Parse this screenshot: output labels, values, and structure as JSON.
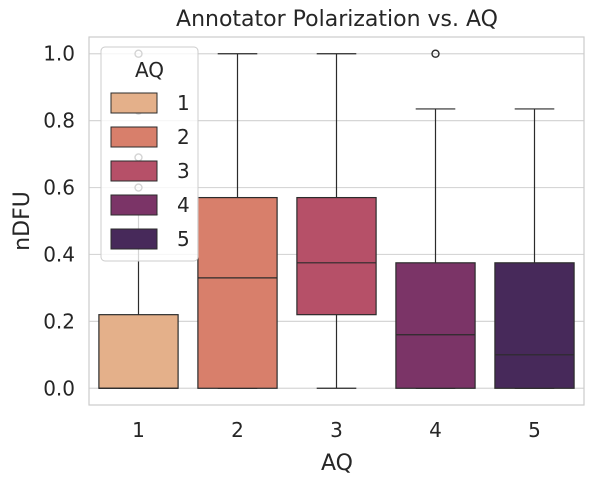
{
  "chart_data": {
    "type": "box",
    "title": "Annotator Polarization vs. AQ",
    "xlabel": "AQ",
    "ylabel": "nDFU",
    "ylim": [
      -0.05,
      1.05
    ],
    "yticks": [
      "0.0",
      "0.2",
      "0.4",
      "0.6",
      "0.8",
      "1.0"
    ],
    "ytick_values": [
      0.0,
      0.2,
      0.4,
      0.6,
      0.8,
      1.0
    ],
    "categories": [
      "1",
      "2",
      "3",
      "4",
      "5"
    ],
    "grid": true,
    "legend": {
      "title": "AQ",
      "placement": "upper-left",
      "labels": [
        "1",
        "2",
        "3",
        "4",
        "5"
      ]
    },
    "colors": [
      "#e4b08a",
      "#d87f6b",
      "#b65068",
      "#7b3467",
      "#47295a"
    ],
    "boxes": [
      {
        "category": "1",
        "q1": 0.0,
        "median": 0.0,
        "q3": 0.22,
        "whisker_low": 0.0,
        "whisker_high": 0.52,
        "outliers": [
          0.6,
          0.69,
          0.83,
          1.0
        ]
      },
      {
        "category": "2",
        "q1": 0.0,
        "median": 0.33,
        "q3": 0.57,
        "whisker_low": 0.0,
        "whisker_high": 1.0,
        "outliers": []
      },
      {
        "category": "3",
        "q1": 0.22,
        "median": 0.375,
        "q3": 0.57,
        "whisker_low": 0.0,
        "whisker_high": 1.0,
        "outliers": []
      },
      {
        "category": "4",
        "q1": 0.0,
        "median": 0.16,
        "q3": 0.375,
        "whisker_low": 0.0,
        "whisker_high": 0.835,
        "outliers": [
          1.0
        ]
      },
      {
        "category": "5",
        "q1": 0.0,
        "median": 0.1,
        "q3": 0.375,
        "whisker_low": 0.0,
        "whisker_high": 0.835,
        "outliers": []
      }
    ]
  }
}
